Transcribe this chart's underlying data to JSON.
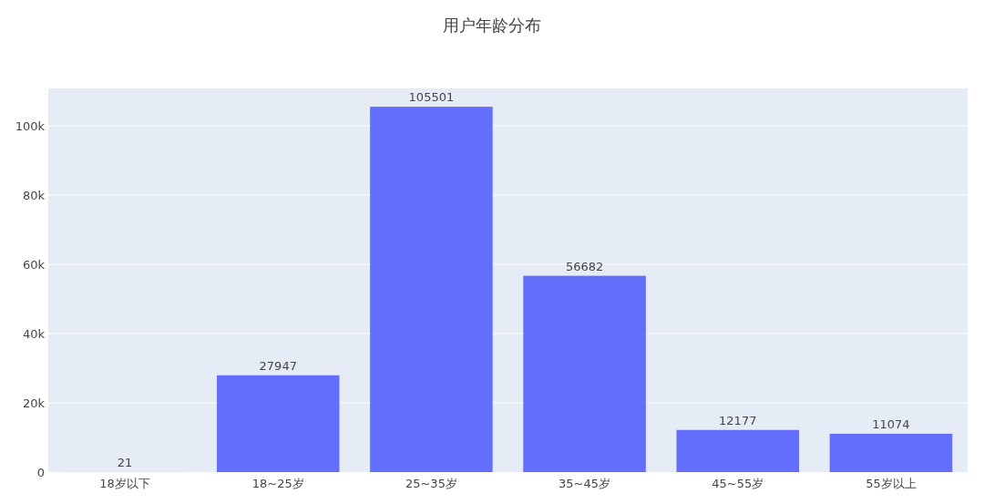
{
  "chart_data": {
    "type": "bar",
    "title": "用户年龄分布",
    "categories": [
      "18岁以下",
      "18~25岁",
      "25~35岁",
      "35~45岁",
      "45~55岁",
      "55岁以上"
    ],
    "values": [
      21,
      27947,
      105501,
      56682,
      12177,
      11074
    ],
    "color": "#636efa",
    "ylim": [
      0,
      110800
    ],
    "yticks": [
      0,
      {
        "value": 20000,
        "label": "20k"
      },
      {
        "value": 40000,
        "label": "40k"
      },
      {
        "value": 60000,
        "label": "60k"
      },
      {
        "value": 80000,
        "label": "80k"
      },
      {
        "value": 100000,
        "label": "100k"
      }
    ],
    "grid": "y",
    "data_labels": true
  }
}
